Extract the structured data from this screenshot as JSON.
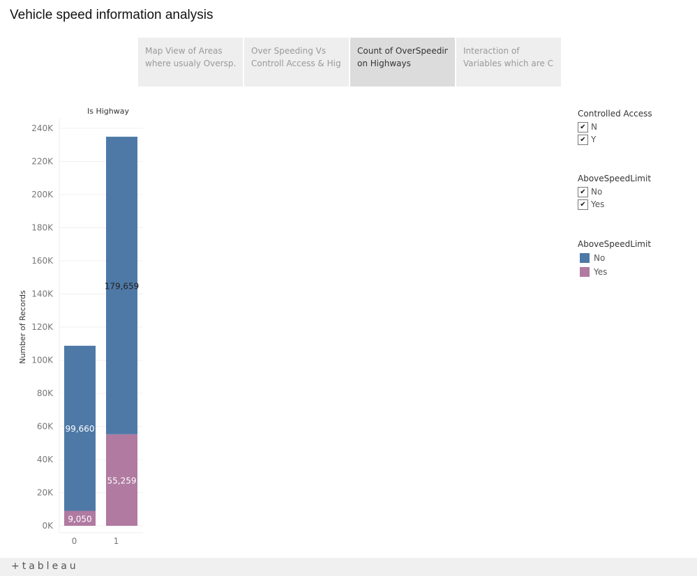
{
  "title": "Vehicle speed information analysis",
  "tabs": [
    {
      "line1": "Map View of Areas",
      "line2": "where usualy Oversp..",
      "active": false
    },
    {
      "line1": "Over Speeding Vs",
      "line2": "Controll Access & Hig..",
      "active": false
    },
    {
      "line1": "Count of OverSpeeding",
      "line2": "on Highways",
      "active": true
    },
    {
      "line1": "Interaction of",
      "line2": "Variables which are C..",
      "active": false
    }
  ],
  "filters": [
    {
      "title": "Controlled Access",
      "items": [
        {
          "label": "N",
          "checked": true
        },
        {
          "label": "Y",
          "checked": true
        }
      ]
    },
    {
      "title": "AboveSpeedLimit",
      "items": [
        {
          "label": "No",
          "checked": true
        },
        {
          "label": "Yes",
          "checked": true
        }
      ]
    }
  ],
  "color_legend": {
    "title": "AboveSpeedLimit",
    "items": [
      {
        "label": "No",
        "color": "#4e79a7"
      },
      {
        "label": "Yes",
        "color": "#b07aa1"
      }
    ]
  },
  "chart_data": {
    "type": "bar",
    "stacked": true,
    "column_header": "Is Highway",
    "ylabel": "Number of Records",
    "categories": [
      "0",
      "1"
    ],
    "ylim": [
      0,
      240000
    ],
    "yticks": [
      "0K",
      "20K",
      "40K",
      "60K",
      "80K",
      "100K",
      "120K",
      "140K",
      "160K",
      "180K",
      "200K",
      "220K",
      "240K"
    ],
    "grid": true,
    "series": [
      {
        "name": "Yes",
        "color": "#b07aa1",
        "values": [
          9050,
          55259
        ],
        "labels": [
          "9,050",
          "55,259"
        ]
      },
      {
        "name": "No",
        "color": "#4e79a7",
        "values": [
          99660,
          179659
        ],
        "labels": [
          "99,660",
          "179,659"
        ]
      }
    ]
  },
  "footer": {
    "logo": "+tableau"
  }
}
